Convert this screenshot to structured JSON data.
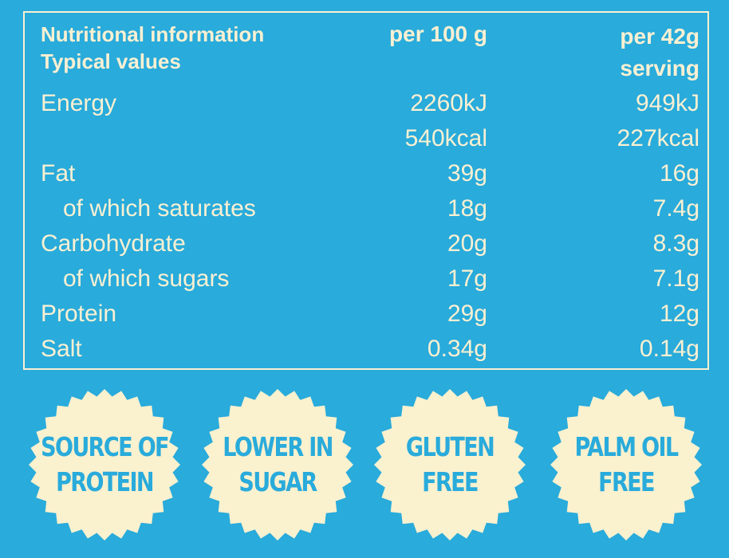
{
  "panel": {
    "heading": "Nutritional information",
    "subheading": "Typical values",
    "col_per100": "per 100 g",
    "col_serving_line1": "per 42g",
    "col_serving_line2": "serving"
  },
  "rows": [
    {
      "label": "Energy",
      "per100": "2260kJ",
      "serving": "949kJ"
    },
    {
      "label": "",
      "per100": "540kcal",
      "serving": "227kcal"
    },
    {
      "label": "Fat",
      "per100": "39g",
      "serving": "16g"
    },
    {
      "label": "of which saturates",
      "per100": "18g",
      "serving": "7.4g"
    },
    {
      "label": "Carbohydrate",
      "per100": "20g",
      "serving": "8.3g"
    },
    {
      "label": "of which sugars",
      "per100": "17g",
      "serving": "7.1g"
    },
    {
      "label": "Protein",
      "per100": "29g",
      "serving": "12g"
    },
    {
      "label": "Salt",
      "per100": "0.34g",
      "serving": "0.14g"
    }
  ],
  "badges": [
    {
      "line1": "SOURCE OF",
      "line2": "PROTEIN"
    },
    {
      "line1": "LOWER IN",
      "line2": "SUGAR"
    },
    {
      "line1": "GLUTEN",
      "line2": "FREE"
    },
    {
      "line1": "PALM OIL",
      "line2": "FREE"
    }
  ],
  "colors": {
    "background": "#29ABDB",
    "cream": "#FBF0D2",
    "badge_fill": "#FAF1CF"
  }
}
